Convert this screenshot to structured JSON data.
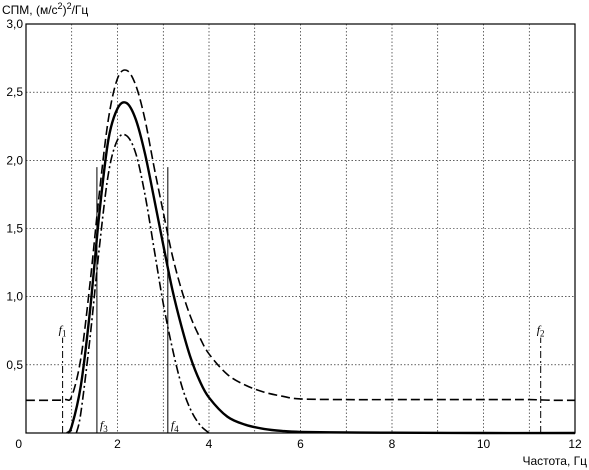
{
  "chart_data": {
    "type": "line",
    "title": "",
    "ylabel": {
      "prefix": "СПМ, (м/с",
      "sup": "2",
      "suffix": ")",
      "sup2": "2",
      "unit": "/Гц"
    },
    "xlabel": "Частота, Гц",
    "xlim": [
      0,
      12
    ],
    "ylim": [
      0,
      3.0
    ],
    "x_ticks": [
      0,
      2,
      4,
      6,
      8,
      10,
      12
    ],
    "x_tick_labels": [
      "0",
      "2",
      "4",
      "6",
      "8",
      "10",
      "12"
    ],
    "y_ticks": [
      0.5,
      1.0,
      1.5,
      2.0,
      2.5,
      3.0
    ],
    "y_tick_labels": [
      "0,5",
      "1,0",
      "1,5",
      "2,0",
      "2,5",
      "3,0"
    ],
    "x_grid_step": 1,
    "grid": true,
    "series": [
      {
        "style": "dashed",
        "x": [
          0,
          0.5,
          0.85,
          1.0,
          1.2,
          1.4,
          1.6,
          1.8,
          2.0,
          2.2,
          2.4,
          2.6,
          2.8,
          3.0,
          3.2,
          3.4,
          3.6,
          3.8,
          4.0,
          4.4,
          4.8,
          5.2,
          5.6,
          6.0,
          7.0,
          8.0,
          9.0,
          10.0,
          11.0,
          11.5,
          12.0
        ],
        "y": [
          0.24,
          0.24,
          0.245,
          0.27,
          0.55,
          1.1,
          1.75,
          2.3,
          2.6,
          2.66,
          2.55,
          2.3,
          1.95,
          1.62,
          1.3,
          1.05,
          0.85,
          0.7,
          0.58,
          0.43,
          0.35,
          0.3,
          0.27,
          0.25,
          0.245,
          0.245,
          0.245,
          0.245,
          0.245,
          0.24,
          0.24
        ]
      },
      {
        "style": "solid",
        "x": [
          0.9,
          1.0,
          1.2,
          1.4,
          1.6,
          1.8,
          2.0,
          2.2,
          2.4,
          2.6,
          2.8,
          3.0,
          3.2,
          3.4,
          3.6,
          3.8,
          4.0,
          4.4,
          4.8,
          5.2,
          5.6,
          6.0,
          7.0,
          8.0,
          10.0,
          12.0
        ],
        "y": [
          0.0,
          0.05,
          0.35,
          0.9,
          1.6,
          2.15,
          2.38,
          2.42,
          2.3,
          2.05,
          1.72,
          1.38,
          1.05,
          0.78,
          0.55,
          0.38,
          0.26,
          0.12,
          0.06,
          0.03,
          0.015,
          0.008,
          0.004,
          0.002,
          0.0,
          0.0
        ]
      },
      {
        "style": "dashdot",
        "x": [
          1.1,
          1.2,
          1.4,
          1.6,
          1.8,
          2.0,
          2.2,
          2.4,
          2.6,
          2.8,
          3.0,
          3.2,
          3.4,
          3.6,
          3.8,
          4.0
        ],
        "y": [
          0.0,
          0.15,
          0.7,
          1.35,
          1.9,
          2.15,
          2.18,
          2.05,
          1.75,
          1.35,
          0.95,
          0.62,
          0.35,
          0.17,
          0.06,
          0.0
        ]
      }
    ],
    "markers": [
      {
        "label": "f",
        "sub": "1",
        "x": 0.8,
        "top": 0.7,
        "style": "dashdot",
        "label_pos": "top"
      },
      {
        "label": "f",
        "sub": "2",
        "x": 11.25,
        "top": 0.7,
        "style": "dashdot",
        "label_pos": "top"
      },
      {
        "label": "f",
        "sub": "3",
        "x": 1.55,
        "top": 1.95,
        "style": "solid",
        "label_pos": "bottom"
      },
      {
        "label": "f",
        "sub": "4",
        "x": 3.1,
        "top": 1.95,
        "style": "solid",
        "label_pos": "bottom"
      }
    ]
  }
}
